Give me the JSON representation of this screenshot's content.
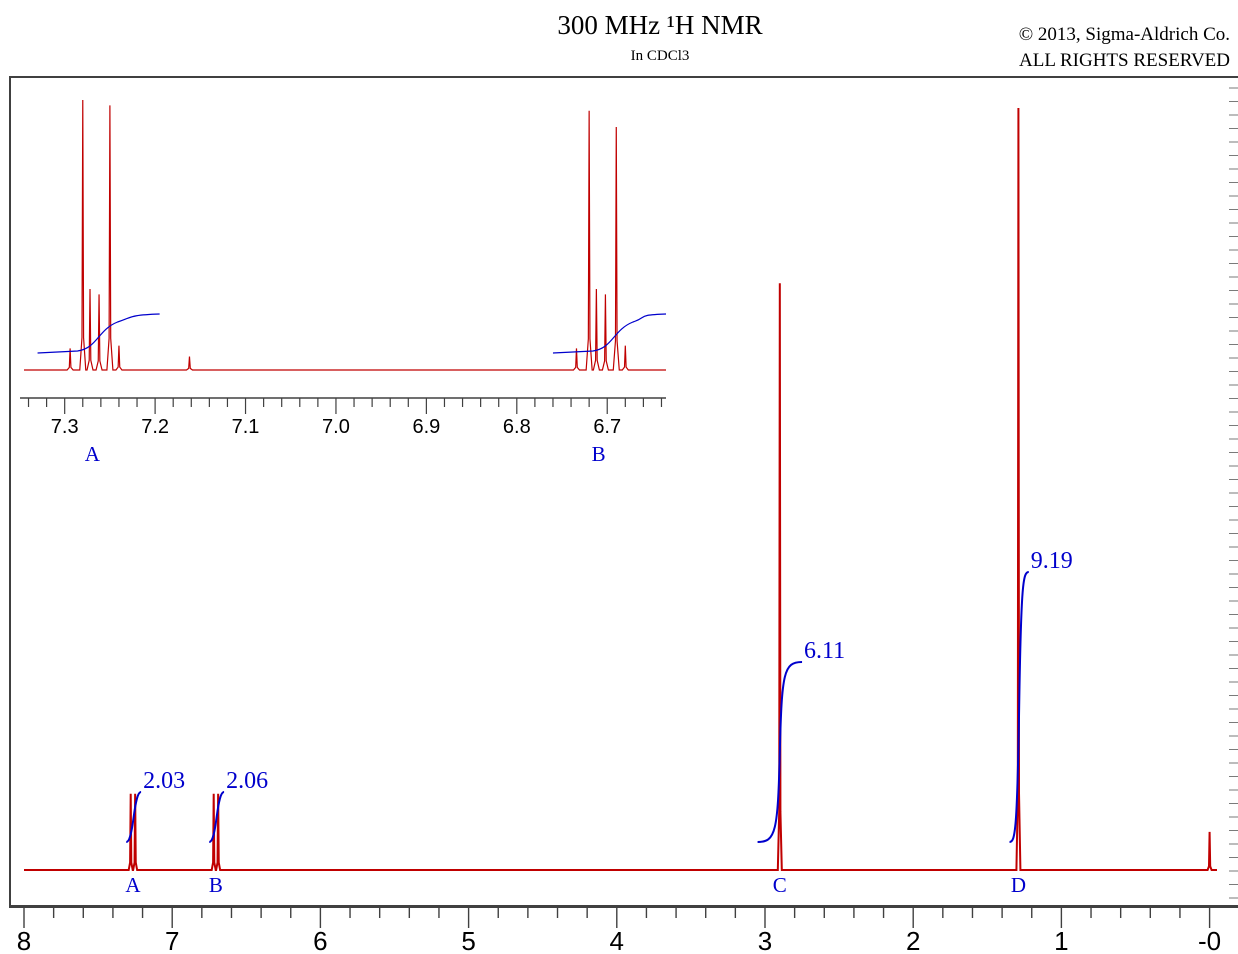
{
  "header": {
    "title": "300 MHz ¹H NMR",
    "subtitle": "In CDCl3",
    "copyright_line1": "© 2013, Sigma-Aldrich Co.",
    "copyright_line2": "ALL RIGHTS RESERVED"
  },
  "colors": {
    "spectrum": "#c00000",
    "integral": "#0000cc",
    "axis": "#404040"
  },
  "chart_data": {
    "type": "line",
    "title": "300 MHz ¹H NMR",
    "subtitle": "In CDCl3",
    "xlabel": "",
    "ylabel": "",
    "xlim": [
      8.0,
      -0.05
    ],
    "x_reversed": true,
    "grid": false,
    "main": {
      "ticks": [
        8,
        7,
        6,
        5,
        4,
        3,
        2,
        1,
        0
      ],
      "tick_labels": [
        "8",
        "7",
        "6",
        "5",
        "4",
        "3",
        "2",
        "1",
        "-0"
      ],
      "peaks": [
        {
          "label": "A",
          "shift": 7.265,
          "lines": [
            7.28,
            7.25
          ],
          "rel_height": 0.1
        },
        {
          "label": "B",
          "shift": 6.705,
          "lines": [
            6.72,
            6.69
          ],
          "rel_height": 0.1
        },
        {
          "label": "C",
          "shift": 2.9,
          "lines": [
            2.9
          ],
          "rel_height": 0.77
        },
        {
          "label": "D",
          "shift": 1.29,
          "lines": [
            1.29
          ],
          "rel_height": 1.0
        },
        {
          "label": "",
          "shift": 0.0,
          "lines": [
            0.0
          ],
          "rel_height": 0.05
        }
      ],
      "integrals": [
        {
          "label": "2.03",
          "start": 7.31,
          "end": 7.21
        },
        {
          "label": "2.06",
          "start": 6.75,
          "end": 6.65
        },
        {
          "label": "6.11",
          "start": 3.05,
          "end": 2.75
        },
        {
          "label": "9.19",
          "start": 1.35,
          "end": 1.22
        }
      ]
    },
    "inset": {
      "xlim": [
        7.345,
        6.635
      ],
      "ticks": [
        7.3,
        7.2,
        7.1,
        7.0,
        6.9,
        6.8,
        6.7
      ],
      "tick_labels": [
        "7.3",
        "7.2",
        "7.1",
        "7.0",
        "6.9",
        "6.8",
        "6.7"
      ],
      "peak_labels": [
        {
          "label": "A",
          "shift": 7.275
        },
        {
          "label": "B",
          "shift": 6.715
        }
      ]
    }
  }
}
